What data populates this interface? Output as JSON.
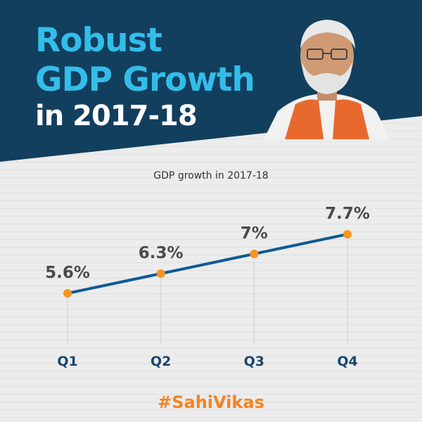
{
  "header": {
    "title_line1": "Robust",
    "title_line2": "GDP Growth",
    "title_line3": "in 2017-18"
  },
  "colors": {
    "header_bg": "#123f5e",
    "title_accent": "#33bde9",
    "line": "#0f5b94",
    "point": "#f7941d",
    "hashtag": "#f58220",
    "category_label": "#17466e"
  },
  "portrait_icon": "person-portrait-icon",
  "chart_data": {
    "type": "line",
    "title": "GDP growth in 2017-18",
    "categories": [
      "Q1",
      "Q2",
      "Q3",
      "Q4"
    ],
    "values": [
      5.6,
      6.3,
      7.0,
      7.7
    ],
    "data_labels": [
      "5.6%",
      "6.3%",
      "7%",
      "7.7%"
    ],
    "unit": "%",
    "grid": false,
    "legend": "none"
  },
  "footer": {
    "hashtag": "#SahiVikas"
  }
}
